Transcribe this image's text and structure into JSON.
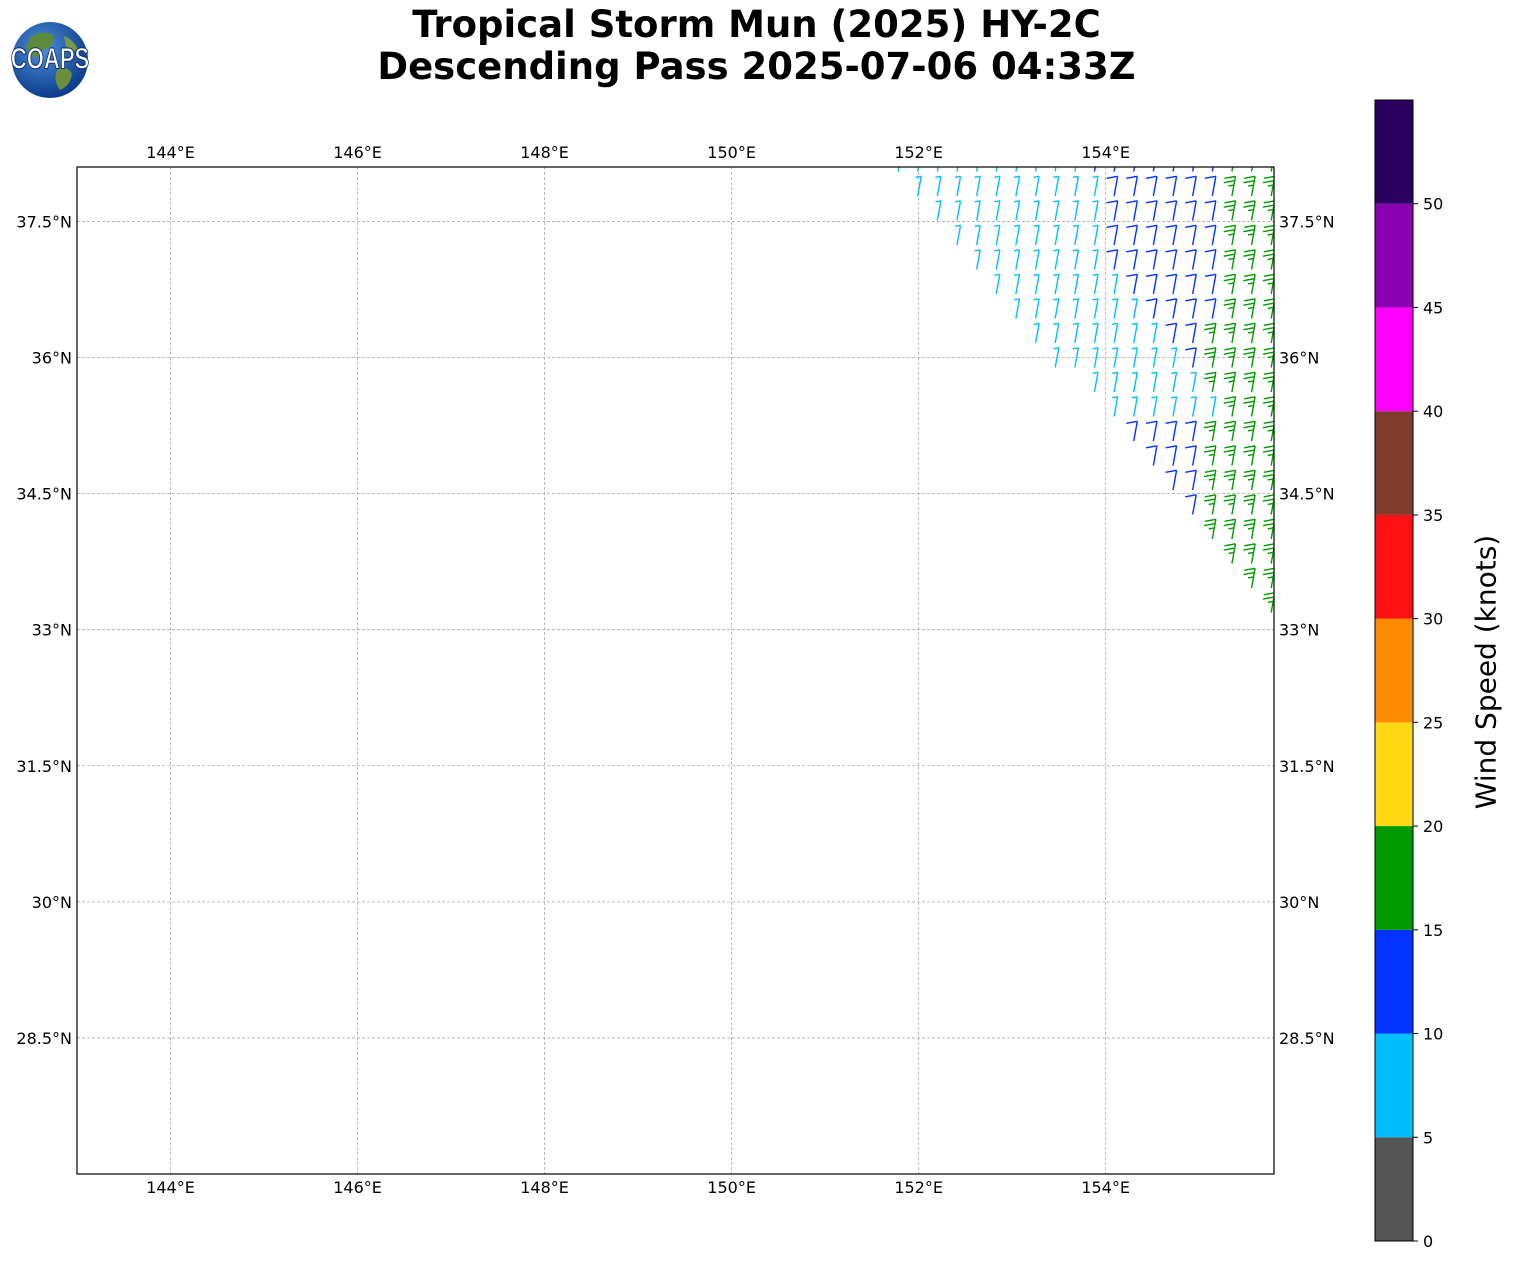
{
  "title": {
    "line1": "Tropical Storm Mun (2025) HY-2C",
    "line2": "Descending Pass 2025-07-06 04:33Z"
  },
  "logo": {
    "text": "COAPS",
    "icon": "globe-logo-icon"
  },
  "map": {
    "lon_range": [
      143.0,
      155.8
    ],
    "lat_range": [
      27.0,
      38.1
    ],
    "lon_ticks": [
      {
        "value": 144,
        "label": "144°E"
      },
      {
        "value": 146,
        "label": "146°E"
      },
      {
        "value": 148,
        "label": "148°E"
      },
      {
        "value": 150,
        "label": "150°E"
      },
      {
        "value": 152,
        "label": "152°E"
      },
      {
        "value": 154,
        "label": "154°E"
      }
    ],
    "lat_ticks": [
      {
        "value": 37.5,
        "label": "37.5°N"
      },
      {
        "value": 36,
        "label": "36°N"
      },
      {
        "value": 34.5,
        "label": "34.5°N"
      },
      {
        "value": 33,
        "label": "33°N"
      },
      {
        "value": 31.5,
        "label": "31.5°N"
      },
      {
        "value": 30,
        "label": "30°N"
      },
      {
        "value": 28.5,
        "label": "28.5°N"
      }
    ],
    "grid": true,
    "swath": {
      "north_lat": 38.1,
      "edge_line": [
        [
          151.6,
          38.1
        ],
        [
          155.8,
          33.1
        ]
      ],
      "east_lon": 155.8,
      "row_step_deg": 0.27,
      "col_step_deg": 0.21,
      "wind_direction": "southwesterly"
    }
  },
  "colorbar": {
    "label": "Wind Speed (knots)",
    "bins": [
      {
        "min": 0,
        "max": 5,
        "color": "#555555"
      },
      {
        "min": 5,
        "max": 10,
        "color": "#00bfff"
      },
      {
        "min": 10,
        "max": 15,
        "color": "#0033ff"
      },
      {
        "min": 15,
        "max": 20,
        "color": "#009900"
      },
      {
        "min": 20,
        "max": 25,
        "color": "#ffd814"
      },
      {
        "min": 25,
        "max": 30,
        "color": "#ff8c00"
      },
      {
        "min": 30,
        "max": 35,
        "color": "#ff1010"
      },
      {
        "min": 35,
        "max": 40,
        "color": "#803c2c"
      },
      {
        "min": 40,
        "max": 45,
        "color": "#ff00ff"
      },
      {
        "min": 45,
        "max": 50,
        "color": "#8a00b0"
      },
      {
        "min": 50,
        "max": 55,
        "color": "#2a0060"
      }
    ],
    "ticks": [
      "0",
      "5",
      "10",
      "15",
      "20",
      "25",
      "30",
      "35",
      "40",
      "45",
      "50"
    ]
  }
}
